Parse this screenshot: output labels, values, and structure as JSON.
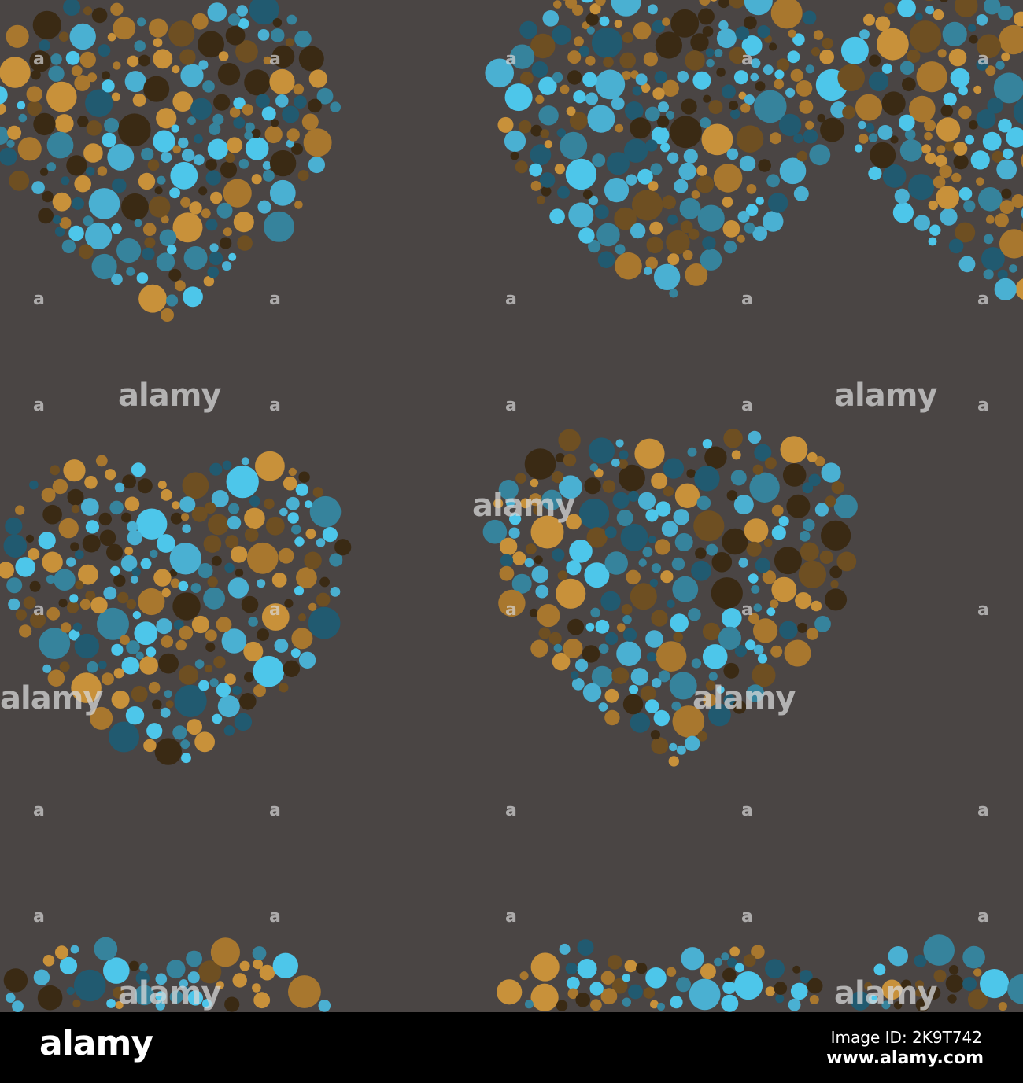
{
  "background_color": "#4a4544",
  "dot_colors": [
    "#c8913a",
    "#a8772e",
    "#6e4f22",
    "#3a2a14",
    "#4ab0d2",
    "#4dc6ea",
    "#36839c",
    "#215a70"
  ],
  "watermark": {
    "text": "alamy",
    "mark": "a"
  },
  "footer": {
    "logo": "alamy",
    "image_id": "Image ID: 2K9T742",
    "website": "www.alamy.com"
  }
}
